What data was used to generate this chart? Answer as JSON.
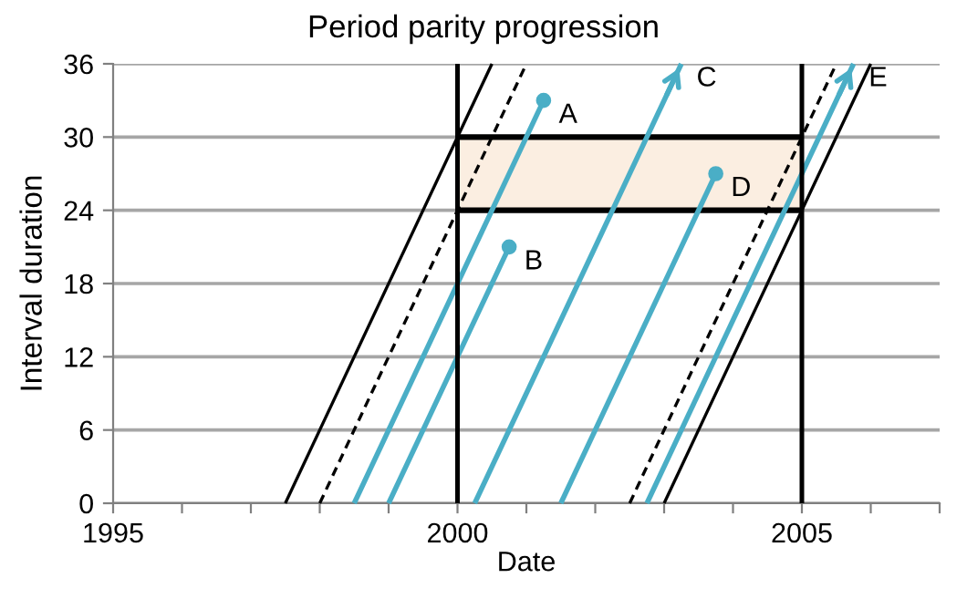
{
  "chart_data": {
    "type": "line",
    "title": "Period parity progression",
    "xlabel": "Date",
    "ylabel": "Interval duration",
    "xlim": [
      1995,
      2007
    ],
    "ylim": [
      0,
      36
    ],
    "xticks": [
      1995,
      {
        "value": 1996,
        "label": null
      },
      {
        "value": 1997,
        "label": null
      },
      {
        "value": 1998,
        "label": null
      },
      {
        "value": 1999,
        "label": null
      },
      2000,
      {
        "value": 2001,
        "label": null
      },
      {
        "value": 2002,
        "label": null
      },
      {
        "value": 2003,
        "label": null
      },
      {
        "value": 2004,
        "label": null
      },
      2005,
      {
        "value": 2006,
        "label": null
      },
      {
        "value": 2007,
        "label": null
      }
    ],
    "yticks": [
      0,
      6,
      12,
      18,
      24,
      30,
      36
    ],
    "grid": "y",
    "series": [
      {
        "color": "#000000",
        "line_style": "solid",
        "x": [
          2000,
          2005
        ],
        "values": [
          30,
          30
        ]
      },
      {
        "color": "#000000",
        "line_style": "solid",
        "x": [
          2000,
          2005
        ],
        "values": [
          24,
          24
        ],
        "lower": [
          24,
          24
        ],
        "upper": [
          30,
          30
        ]
      },
      {
        "color": "#000000",
        "line_style": "solid",
        "x": [
          1997.5,
          2000.5
        ],
        "values": [
          0,
          36
        ]
      },
      {
        "color": "#000000",
        "line_style": "dashed",
        "x": [
          1998,
          2001
        ],
        "values": [
          0,
          36
        ]
      },
      {
        "color": "#000000",
        "line_style": "dashed",
        "x": [
          2002.5,
          2005.5
        ],
        "values": [
          0,
          36
        ]
      },
      {
        "color": "#000000",
        "line_style": "solid",
        "x": [
          2003,
          2006
        ],
        "values": [
          0,
          36
        ]
      },
      {
        "color": "#4aaec6",
        "marker": "circle",
        "x": [
          1998.5,
          2001.25
        ],
        "values": [
          0,
          33
        ]
      },
      {
        "color": "#4aaec6",
        "marker": "circle",
        "x": [
          1999,
          2000.75
        ],
        "values": [
          0,
          21
        ]
      },
      {
        "color": "#4aaec6",
        "x": [
          2000.25,
          2003.25
        ],
        "values": [
          0,
          36
        ]
      },
      {
        "color": "#4aaec6",
        "marker": "circle",
        "x": [
          2001.5,
          2003.75
        ],
        "values": [
          0,
          27
        ]
      },
      {
        "color": "#4aaec6",
        "x": [
          2002.75,
          2005.75
        ],
        "values": [
          0,
          36
        ]
      }
    ],
    "ref_lines": [
      {
        "axis": "x",
        "value": 2000,
        "color": "#000000"
      },
      {
        "axis": "x",
        "value": 2005,
        "color": "#000000"
      }
    ],
    "annotations": [
      {
        "text": "A",
        "x": 2001.25,
        "y": 33
      },
      {
        "text": "B",
        "x": 2000.75,
        "y": 21
      },
      {
        "text": "C",
        "x": 2003.25,
        "y": 36
      },
      {
        "text": "D",
        "x": 2003.75,
        "y": 27
      },
      {
        "text": "E",
        "x": 2005.75,
        "y": 36
      }
    ]
  }
}
